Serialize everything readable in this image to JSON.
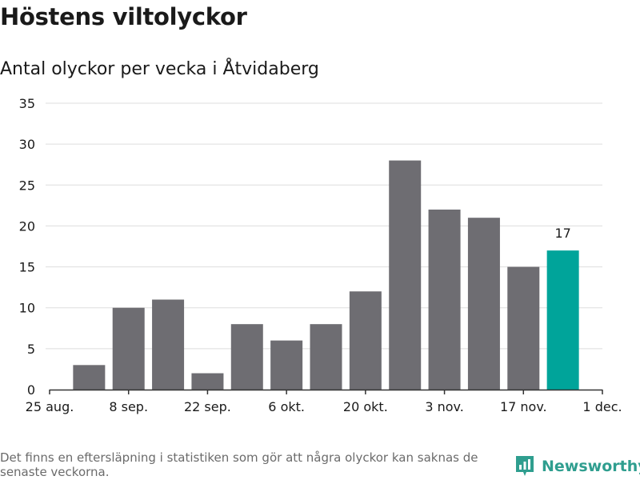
{
  "title": "Höstens viltolyckor",
  "subtitle": "Antal olyckor per vecka i Åtvidaberg",
  "footnote": "Det finns en eftersläpning i statistiken som gör att några olyckor kan saknas de senaste veckorna.",
  "brand": "Newsworthy",
  "colors": {
    "bar": "#6e6d72",
    "highlight": "#00a49a",
    "grid": "#dddddd",
    "axis": "#333333",
    "brand": "#2f9e8f"
  },
  "chart_data": {
    "type": "bar",
    "title": "Höstens viltolyckor",
    "subtitle": "Antal olyckor per vecka i Åtvidaberg",
    "xlabel": "",
    "ylabel": "",
    "ylim": [
      0,
      35
    ],
    "yticks": [
      0,
      5,
      10,
      15,
      20,
      25,
      30,
      35
    ],
    "xlim_weeks": [
      0,
      14
    ],
    "xticks": [
      {
        "week": 0,
        "label": "25 aug."
      },
      {
        "week": 2,
        "label": "8 sep."
      },
      {
        "week": 4,
        "label": "22 sep."
      },
      {
        "week": 6,
        "label": "6 okt."
      },
      {
        "week": 8,
        "label": "20 okt."
      },
      {
        "week": 10,
        "label": "3 nov."
      },
      {
        "week": 12,
        "label": "17 nov."
      },
      {
        "week": 14,
        "label": "1 dec."
      }
    ],
    "bars": [
      {
        "week": 1,
        "value": 3
      },
      {
        "week": 2,
        "value": 10
      },
      {
        "week": 3,
        "value": 11
      },
      {
        "week": 4,
        "value": 2
      },
      {
        "week": 5,
        "value": 8
      },
      {
        "week": 6,
        "value": 6
      },
      {
        "week": 7,
        "value": 8
      },
      {
        "week": 8,
        "value": 12
      },
      {
        "week": 9,
        "value": 28
      },
      {
        "week": 10,
        "value": 22
      },
      {
        "week": 11,
        "value": 21
      },
      {
        "week": 12,
        "value": 15
      },
      {
        "week": 13,
        "value": 17,
        "highlight": true,
        "label": "17"
      }
    ],
    "grid": true
  }
}
